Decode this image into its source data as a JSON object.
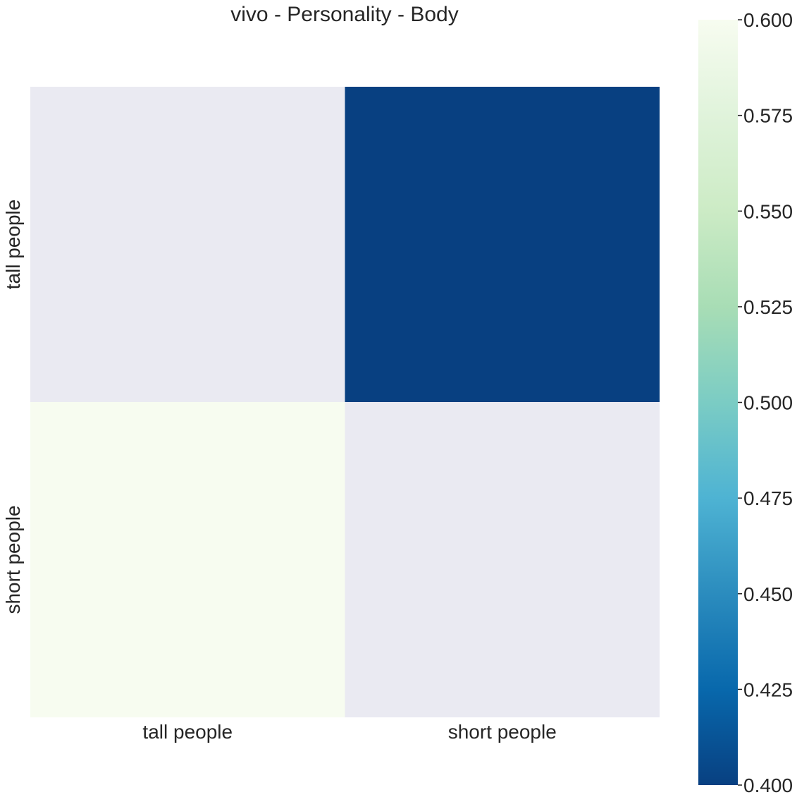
{
  "chart_data": {
    "type": "heatmap",
    "title": "vivo - Personality - Body",
    "x_categories": [
      "tall people",
      "short people"
    ],
    "y_categories": [
      "tall people",
      "short people"
    ],
    "values": [
      [
        null,
        0.4
      ],
      [
        0.6,
        null
      ]
    ],
    "missing_color": "#eaeaf2",
    "colormap": "GnBu_r",
    "colorbar": {
      "vmin": 0.4,
      "vmax": 0.6,
      "ticks": [
        0.4,
        0.425,
        0.45,
        0.475,
        0.5,
        0.525,
        0.55,
        0.575,
        0.6
      ],
      "tick_labels": [
        "0.400",
        "0.425",
        "0.450",
        "0.475",
        "0.500",
        "0.525",
        "0.550",
        "0.575",
        "0.600"
      ],
      "gradient": [
        "#084081",
        "#0868ac",
        "#2b8cbe",
        "#4eb3d3",
        "#7bccc4",
        "#a8ddb5",
        "#ccebc5",
        "#e0f3db",
        "#f7fcf0"
      ]
    }
  }
}
